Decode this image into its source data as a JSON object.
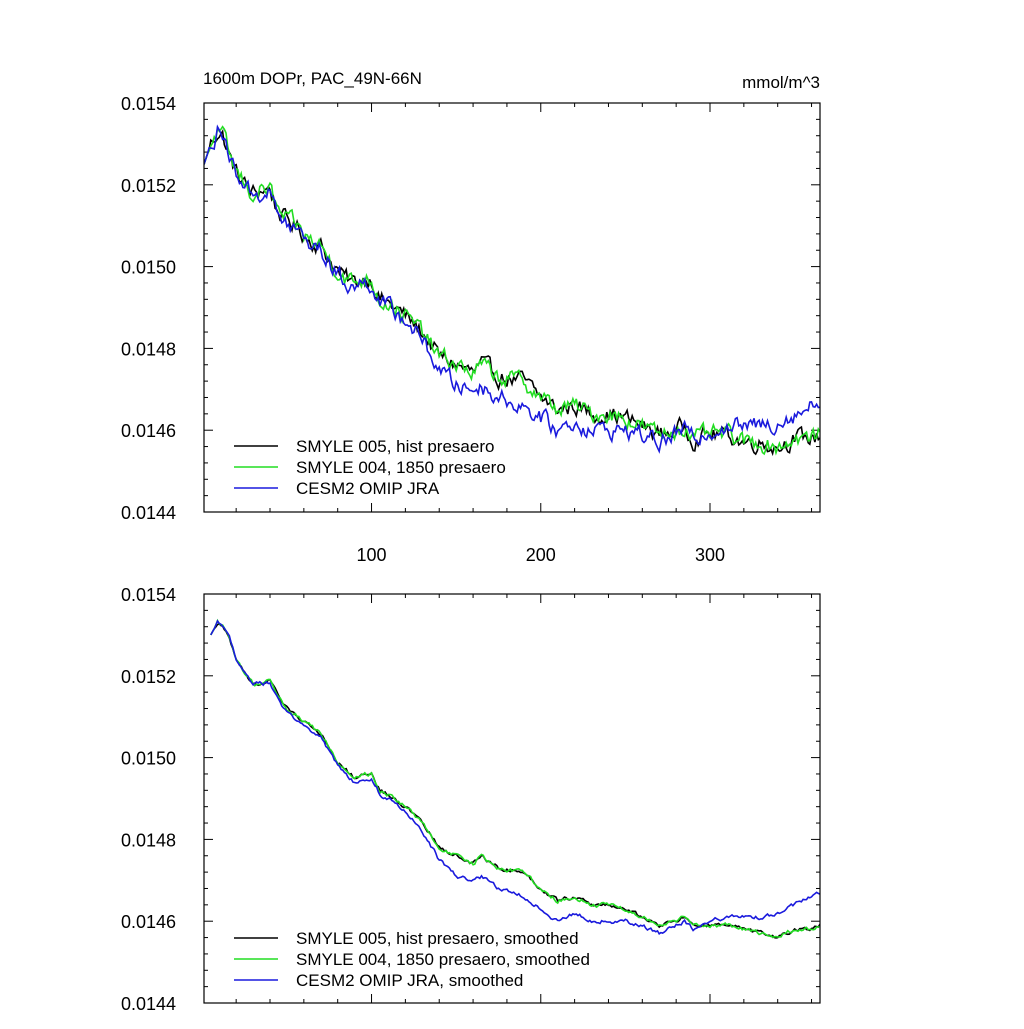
{
  "figure": {
    "title": "1600m DOPr, PAC_49N-66N",
    "units": "mmol/m^3"
  },
  "chart_data": [
    {
      "type": "line",
      "title": "1600m DOPr, PAC_49N-66N",
      "units": "mmol/m^3",
      "xlim": [
        1,
        365
      ],
      "ylim": [
        0.0144,
        0.0154
      ],
      "xticks": [
        100,
        200,
        300
      ],
      "xtick_labels": [
        "100",
        "200",
        "300"
      ],
      "yticks": [
        0.0144,
        0.0146,
        0.0148,
        0.015,
        0.0152,
        0.0154
      ],
      "ytick_labels": [
        "0.0144",
        "0.0146",
        "0.0148",
        "0.0150",
        "0.0152",
        "0.0154"
      ],
      "legend_position": "bottom-left",
      "noise": 2.5e-05,
      "series": [
        {
          "name": "SMYLE 005, hist presaero",
          "color": "#000000",
          "x": [
            1,
            5,
            9,
            12,
            16,
            20,
            24,
            28,
            32,
            36,
            40,
            44,
            48,
            55,
            62,
            70,
            80,
            85,
            90,
            95,
            100,
            105,
            110,
            120,
            130,
            140,
            150,
            160,
            165,
            175,
            190,
            200,
            210,
            220,
            230,
            240,
            250,
            260,
            270,
            280,
            285,
            290,
            300,
            310,
            320,
            330,
            340,
            350,
            360,
            365
          ],
          "y": [
            0.01525,
            0.0153,
            0.01533,
            0.01532,
            0.01527,
            0.01523,
            0.01521,
            0.01518,
            0.01518,
            0.01519,
            0.01519,
            0.01514,
            0.01512,
            0.0151,
            0.01507,
            0.01505,
            0.01499,
            0.01497,
            0.01496,
            0.01497,
            0.01497,
            0.01492,
            0.01491,
            0.01488,
            0.01484,
            0.01478,
            0.01476,
            0.01474,
            0.01476,
            0.01473,
            0.01472,
            0.01468,
            0.01465,
            0.01466,
            0.01464,
            0.01464,
            0.01463,
            0.01461,
            0.01459,
            0.0146,
            0.01461,
            0.01458,
            0.01459,
            0.01459,
            0.01457,
            0.01457,
            0.01456,
            0.01458,
            0.01458,
            0.01459
          ]
        },
        {
          "name": "SMYLE 004, 1850 presaero",
          "color": "#22dd22",
          "x": [
            1,
            5,
            9,
            12,
            16,
            20,
            24,
            28,
            32,
            36,
            40,
            44,
            48,
            55,
            62,
            70,
            80,
            85,
            90,
            95,
            100,
            105,
            110,
            120,
            130,
            140,
            150,
            160,
            165,
            175,
            190,
            200,
            210,
            220,
            230,
            240,
            250,
            260,
            270,
            280,
            285,
            290,
            300,
            310,
            320,
            330,
            340,
            350,
            360,
            365
          ],
          "y": [
            0.01525,
            0.0153,
            0.01533,
            0.01532,
            0.01527,
            0.01523,
            0.01521,
            0.01518,
            0.01518,
            0.01519,
            0.01519,
            0.01514,
            0.01512,
            0.0151,
            0.01507,
            0.01505,
            0.01499,
            0.01497,
            0.01496,
            0.01497,
            0.01497,
            0.01492,
            0.01491,
            0.01488,
            0.01484,
            0.01478,
            0.01476,
            0.01474,
            0.01476,
            0.01473,
            0.01472,
            0.01468,
            0.01465,
            0.01466,
            0.01464,
            0.01464,
            0.01463,
            0.01461,
            0.01459,
            0.0146,
            0.01461,
            0.01458,
            0.01459,
            0.01459,
            0.01457,
            0.01457,
            0.01456,
            0.01458,
            0.01458,
            0.01459
          ]
        },
        {
          "name": "CESM2 OMIP JRA",
          "color": "#1a1add",
          "x": [
            1,
            5,
            9,
            12,
            16,
            20,
            24,
            28,
            32,
            36,
            40,
            44,
            48,
            55,
            62,
            70,
            80,
            85,
            90,
            95,
            100,
            105,
            110,
            120,
            130,
            140,
            150,
            160,
            165,
            175,
            190,
            200,
            210,
            220,
            230,
            240,
            250,
            260,
            270,
            280,
            285,
            290,
            300,
            310,
            320,
            330,
            340,
            350,
            360,
            365
          ],
          "y": [
            0.01525,
            0.0153,
            0.01533,
            0.01532,
            0.01527,
            0.01523,
            0.01521,
            0.01518,
            0.01518,
            0.01518,
            0.01518,
            0.01513,
            0.01511,
            0.01509,
            0.01506,
            0.01504,
            0.01498,
            0.01496,
            0.01495,
            0.01496,
            0.01496,
            0.01491,
            0.0149,
            0.01487,
            0.01482,
            0.01475,
            0.01471,
            0.0147,
            0.01471,
            0.01468,
            0.01466,
            0.01463,
            0.0146,
            0.01462,
            0.0146,
            0.0146,
            0.0146,
            0.01459,
            0.01457,
            0.01459,
            0.0146,
            0.01458,
            0.0146,
            0.01461,
            0.01461,
            0.01461,
            0.01462,
            0.01464,
            0.01466,
            0.01467
          ]
        }
      ]
    },
    {
      "type": "line",
      "xlim": [
        1,
        365
      ],
      "ylim": [
        0.0144,
        0.0154
      ],
      "xticks": [
        100,
        200,
        300
      ],
      "xtick_labels": [],
      "yticks": [
        0.0144,
        0.0146,
        0.0148,
        0.015,
        0.0152,
        0.0154
      ],
      "ytick_labels": [
        "0.0144",
        "0.0146",
        "0.0148",
        "0.0150",
        "0.0152",
        "0.0154"
      ],
      "legend_position": "bottom-left",
      "noise": 6e-06,
      "series": [
        {
          "name": "SMYLE 005, hist presaero, smoothed",
          "color": "#000000",
          "x": [
            5,
            9,
            12,
            16,
            20,
            25,
            30,
            35,
            40,
            45,
            50,
            60,
            70,
            80,
            85,
            90,
            95,
            100,
            105,
            110,
            120,
            130,
            140,
            150,
            160,
            165,
            175,
            190,
            200,
            210,
            220,
            230,
            240,
            250,
            260,
            270,
            280,
            285,
            290,
            300,
            310,
            320,
            330,
            340,
            350,
            360,
            365
          ],
          "y": [
            0.0153,
            0.01533,
            0.01532,
            0.01529,
            0.01524,
            0.01521,
            0.01518,
            0.01518,
            0.01519,
            0.01515,
            0.01512,
            0.01509,
            0.01506,
            0.01499,
            0.01497,
            0.01495,
            0.01496,
            0.01496,
            0.01492,
            0.01491,
            0.01488,
            0.01484,
            0.01478,
            0.01476,
            0.01474,
            0.01476,
            0.01473,
            0.01472,
            0.01468,
            0.01465,
            0.01466,
            0.01464,
            0.01464,
            0.01463,
            0.01461,
            0.01459,
            0.0146,
            0.01461,
            0.01459,
            0.01459,
            0.01459,
            0.01458,
            0.01457,
            0.01456,
            0.01458,
            0.01458,
            0.01459
          ]
        },
        {
          "name": "SMYLE 004, 1850 presaero, smoothed",
          "color": "#22dd22",
          "x": [
            5,
            9,
            12,
            16,
            20,
            25,
            30,
            35,
            40,
            45,
            50,
            60,
            70,
            80,
            85,
            90,
            95,
            100,
            105,
            110,
            120,
            130,
            140,
            150,
            160,
            165,
            175,
            190,
            200,
            210,
            220,
            230,
            240,
            250,
            260,
            270,
            280,
            285,
            290,
            300,
            310,
            320,
            330,
            340,
            350,
            360,
            365
          ],
          "y": [
            0.0153,
            0.01533,
            0.01532,
            0.01529,
            0.01524,
            0.01521,
            0.01518,
            0.01518,
            0.01519,
            0.01515,
            0.01512,
            0.01509,
            0.01506,
            0.01499,
            0.01497,
            0.01495,
            0.01496,
            0.01496,
            0.01492,
            0.01491,
            0.01488,
            0.01484,
            0.01478,
            0.01476,
            0.01474,
            0.01476,
            0.01473,
            0.01472,
            0.01468,
            0.01465,
            0.01466,
            0.01464,
            0.01464,
            0.01463,
            0.01461,
            0.01459,
            0.0146,
            0.01461,
            0.01459,
            0.01459,
            0.01459,
            0.01458,
            0.01457,
            0.01456,
            0.01458,
            0.01458,
            0.01459
          ]
        },
        {
          "name": "CESM2 OMIP JRA, smoothed",
          "color": "#1a1add",
          "x": [
            5,
            9,
            12,
            16,
            20,
            25,
            30,
            35,
            40,
            45,
            50,
            60,
            70,
            80,
            85,
            90,
            95,
            100,
            105,
            110,
            120,
            130,
            140,
            150,
            160,
            165,
            175,
            190,
            200,
            210,
            220,
            230,
            240,
            250,
            260,
            270,
            280,
            285,
            290,
            300,
            310,
            320,
            330,
            340,
            350,
            360,
            365
          ],
          "y": [
            0.0153,
            0.01533,
            0.01532,
            0.01529,
            0.01524,
            0.01521,
            0.01518,
            0.01518,
            0.01518,
            0.01514,
            0.01511,
            0.01508,
            0.01505,
            0.01498,
            0.01496,
            0.01494,
            0.01495,
            0.01495,
            0.01491,
            0.0149,
            0.01487,
            0.01482,
            0.01475,
            0.01471,
            0.0147,
            0.01471,
            0.01468,
            0.01466,
            0.01463,
            0.0146,
            0.01462,
            0.0146,
            0.0146,
            0.0146,
            0.01459,
            0.01457,
            0.01459,
            0.0146,
            0.01458,
            0.0146,
            0.01461,
            0.01461,
            0.01461,
            0.01462,
            0.01464,
            0.01466,
            0.01467
          ]
        }
      ]
    }
  ]
}
